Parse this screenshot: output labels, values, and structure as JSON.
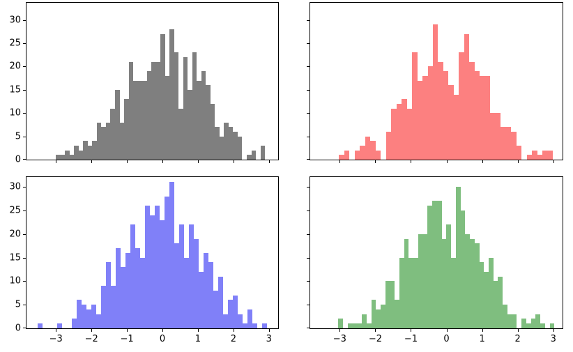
{
  "figure": {
    "background": "#ffffff",
    "rows": 2,
    "cols": 2,
    "description": "2x2 grid of histograms of normally distributed samples"
  },
  "chart_data": [
    {
      "type": "bar",
      "subtype": "histogram",
      "position": "top-left",
      "series_color": "#7f7f7f",
      "title": "",
      "xlabel": "",
      "ylabel": "",
      "grid": false,
      "legend": null,
      "bin_start": -3.0,
      "bin_width": 0.128,
      "values": [
        1,
        1,
        2,
        1,
        3,
        2,
        4,
        3,
        4,
        8,
        7,
        8,
        11,
        15,
        8,
        13,
        21,
        17,
        17,
        17,
        19,
        21,
        21,
        27,
        18,
        28,
        23,
        11,
        22,
        15,
        23,
        17,
        19,
        16,
        12,
        7,
        5,
        8,
        7,
        6,
        5,
        0,
        1,
        2,
        0,
        3
      ],
      "xlim": [
        -3.83,
        3.26
      ],
      "ylim": [
        0,
        33.7
      ],
      "xticks": [
        -3,
        -2,
        -1,
        0,
        1,
        2,
        3
      ],
      "yticks": [
        0,
        5,
        10,
        15,
        20,
        25,
        30
      ],
      "show_x_tick_labels": false,
      "show_y_tick_labels": true
    },
    {
      "type": "bar",
      "subtype": "histogram",
      "position": "top-right",
      "series_color": "#fc8080",
      "title": "",
      "xlabel": "",
      "ylabel": "",
      "grid": false,
      "legend": null,
      "bin_start": -3.02,
      "bin_width": 0.1465,
      "values": [
        1,
        2,
        0,
        2,
        3,
        5,
        4,
        2,
        0,
        6,
        11,
        12,
        13,
        11,
        23,
        17,
        18,
        20,
        29,
        21,
        19,
        16,
        14,
        23,
        27,
        21,
        19,
        18,
        18,
        10,
        10,
        7,
        7,
        6,
        3,
        0,
        1,
        2,
        1,
        2,
        2
      ],
      "xlim": [
        -3.83,
        3.26
      ],
      "ylim": [
        0,
        33.7
      ],
      "xticks": [
        -3,
        -2,
        -1,
        0,
        1,
        2,
        3
      ],
      "yticks": [
        0,
        5,
        10,
        15,
        20,
        25,
        30
      ],
      "show_x_tick_labels": false,
      "show_y_tick_labels": false
    },
    {
      "type": "bar",
      "subtype": "histogram",
      "position": "bottom-left",
      "series_color": "#8080f8",
      "title": "",
      "xlabel": "",
      "ylabel": "",
      "grid": false,
      "legend": null,
      "bin_start": -3.52,
      "bin_width": 0.1375,
      "values": [
        1,
        0,
        0,
        0,
        1,
        0,
        0,
        2,
        6,
        5,
        4,
        5,
        3,
        9,
        14,
        9,
        17,
        13,
        16,
        22,
        17,
        15,
        26,
        24,
        26,
        23,
        28,
        31,
        18,
        22,
        15,
        22,
        19,
        12,
        16,
        14,
        8,
        11,
        3,
        6,
        7,
        3,
        1,
        4,
        1,
        0,
        1
      ],
      "xlim": [
        -3.83,
        3.26
      ],
      "ylim": [
        0,
        32.1
      ],
      "xticks": [
        -3,
        -2,
        -1,
        0,
        1,
        2,
        3
      ],
      "yticks": [
        0,
        5,
        10,
        15,
        20,
        25,
        30
      ],
      "show_x_tick_labels": true,
      "show_y_tick_labels": true
    },
    {
      "type": "bar",
      "subtype": "histogram",
      "position": "bottom-right",
      "series_color": "#7fbe7f",
      "title": "",
      "xlabel": "",
      "ylabel": "",
      "grid": false,
      "legend": null,
      "bin_start": -3.04,
      "bin_width": 0.132,
      "values": [
        2,
        0,
        1,
        1,
        1,
        3,
        1,
        6,
        4,
        5,
        10,
        10,
        6,
        15,
        19,
        15,
        15,
        20,
        20,
        26,
        27,
        27,
        19,
        22,
        15,
        30,
        25,
        20,
        19,
        18,
        14,
        12,
        15,
        10,
        11,
        5,
        3,
        3,
        0,
        2,
        1,
        2,
        3,
        1,
        0,
        1
      ],
      "xlim": [
        -3.83,
        3.26
      ],
      "ylim": [
        0,
        32.1
      ],
      "xticks": [
        -3,
        -2,
        -1,
        0,
        1,
        2,
        3
      ],
      "yticks": [
        0,
        5,
        10,
        15,
        20,
        25,
        30
      ],
      "show_x_tick_labels": true,
      "show_y_tick_labels": false
    }
  ],
  "axis_style": {
    "tick_color": "#000000",
    "spine_color": "#000000",
    "label_color": "#000000",
    "minus_sign": "−"
  }
}
